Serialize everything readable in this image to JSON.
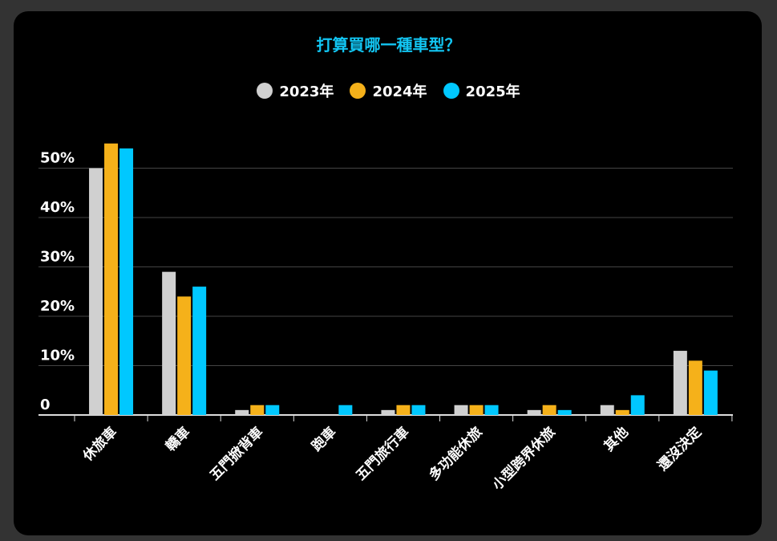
{
  "chart_data": {
    "type": "bar",
    "title": "打算買哪一種車型？",
    "categories": [
      "休旅車",
      "轎車",
      "五門掀背車",
      "跑車",
      "五門旅行車",
      "多功能休旅",
      "小型跨界休旅",
      "其他",
      "還沒決定"
    ],
    "series": [
      {
        "name": "2023年",
        "color": "#d0d0d0",
        "values": [
          50,
          29,
          1,
          0,
          1,
          2,
          1,
          2,
          13
        ]
      },
      {
        "name": "2024年",
        "color": "#f5b11a",
        "values": [
          55,
          24,
          2,
          0,
          2,
          2,
          2,
          1,
          11
        ]
      },
      {
        "name": "2025年",
        "color": "#00c8ff",
        "values": [
          54,
          26,
          2,
          2,
          2,
          2,
          1,
          4,
          9
        ]
      }
    ],
    "yticks": [
      "0",
      "10%",
      "20%",
      "30%",
      "40%",
      "50%"
    ],
    "ytick_values": [
      0,
      10,
      20,
      30,
      40,
      50
    ],
    "ylim": [
      0,
      50
    ],
    "grid": true,
    "legend_position": "top-center",
    "xlabel": "",
    "ylabel": ""
  }
}
